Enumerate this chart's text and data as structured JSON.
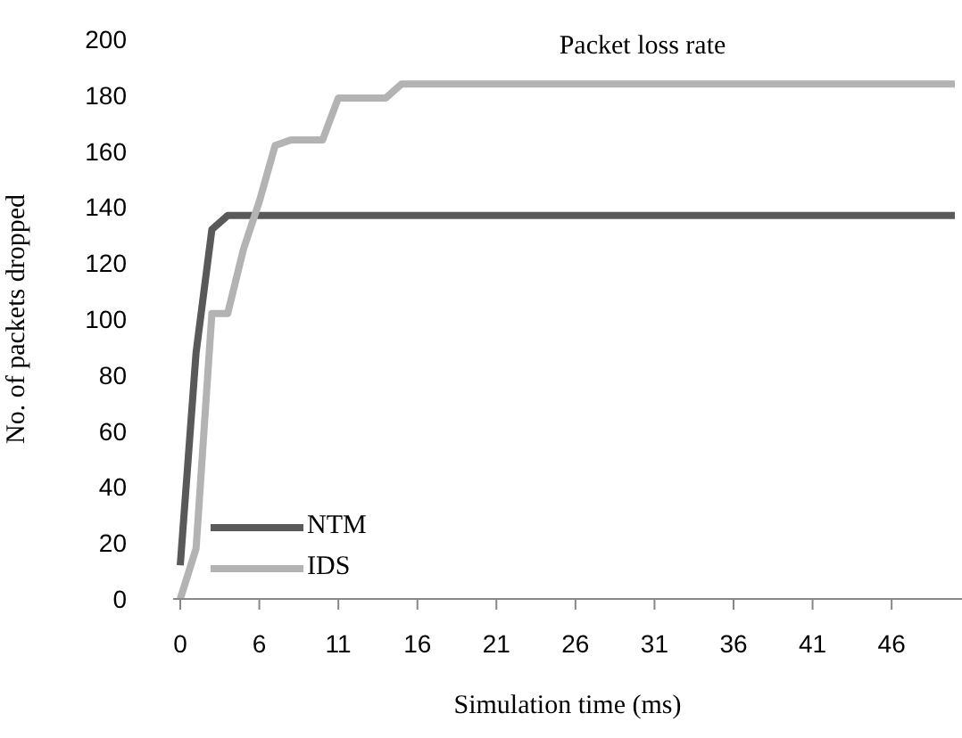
{
  "chart_data": {
    "type": "line",
    "title": "Packet loss rate",
    "xlabel": "Simulation time (ms)",
    "ylabel": "No. of packets dropped",
    "categories": [
      "0",
      null,
      null,
      null,
      null,
      "6",
      null,
      null,
      null,
      null,
      "11",
      null,
      null,
      null,
      null,
      "16",
      null,
      null,
      null,
      null,
      "21",
      null,
      null,
      null,
      null,
      "26",
      null,
      null,
      null,
      null,
      "31",
      null,
      null,
      null,
      null,
      "36",
      null,
      null,
      null,
      null,
      "41",
      null,
      null,
      null,
      null,
      "46",
      null,
      null,
      null,
      null
    ],
    "series": [
      {
        "name": "NTM",
        "color": "#595959",
        "values": [
          12,
          88,
          132,
          137,
          137,
          137,
          137,
          137,
          137,
          137,
          137,
          137,
          137,
          137,
          137,
          137,
          137,
          137,
          137,
          137,
          137,
          137,
          137,
          137,
          137,
          137,
          137,
          137,
          137,
          137,
          137,
          137,
          137,
          137,
          137,
          137,
          137,
          137,
          137,
          137,
          137,
          137,
          137,
          137,
          137,
          137,
          137,
          137,
          137,
          137
        ]
      },
      {
        "name": "IDS",
        "color": "#b3b3b3",
        "values": [
          0,
          18,
          102,
          102,
          125,
          142,
          162,
          164,
          164,
          164,
          179,
          179,
          179,
          179,
          184,
          184,
          184,
          184,
          184,
          184,
          184,
          184,
          184,
          184,
          184,
          184,
          184,
          184,
          184,
          184,
          184,
          184,
          184,
          184,
          184,
          184,
          184,
          184,
          184,
          184,
          184,
          184,
          184,
          184,
          184,
          184,
          184,
          184,
          184,
          184
        ]
      }
    ],
    "ylim": [
      0,
      200
    ],
    "yticks": [
      0,
      20,
      40,
      60,
      80,
      100,
      120,
      140,
      160,
      180,
      200
    ],
    "legend": "bottom left",
    "marker": "none",
    "line_style": "solid"
  }
}
